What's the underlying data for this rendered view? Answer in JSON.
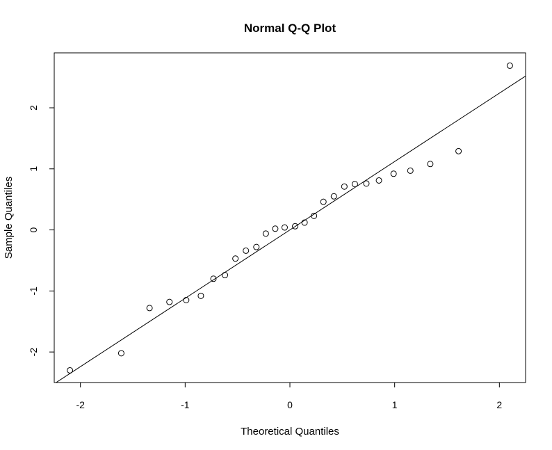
{
  "chart_data": {
    "type": "scatter",
    "title": "Normal Q-Q Plot",
    "xlabel": "Theoretical Quantiles",
    "ylabel": "Sample Quantiles",
    "xlim": [
      -2.25,
      2.25
    ],
    "ylim": [
      -2.5,
      2.9
    ],
    "x_ticks": [
      -2,
      -1,
      0,
      1,
      2
    ],
    "x_tick_labels": [
      "-2",
      "-1",
      "0",
      "1",
      "2"
    ],
    "y_ticks": [
      -2,
      -1,
      0,
      1,
      2
    ],
    "y_tick_labels": [
      "-2",
      "-1",
      "0",
      "1",
      "2"
    ],
    "grid": false,
    "legend": "none",
    "points": {
      "x": [
        -2.1,
        -1.61,
        -1.34,
        -1.15,
        -0.99,
        -0.85,
        -0.73,
        -0.62,
        -0.52,
        -0.42,
        -0.32,
        -0.23,
        -0.14,
        -0.05,
        0.05,
        0.14,
        0.23,
        0.32,
        0.42,
        0.52,
        0.62,
        0.73,
        0.85,
        0.99,
        1.15,
        1.34,
        1.61,
        2.1
      ],
      "y": [
        -2.3,
        -2.02,
        -1.28,
        -1.18,
        -1.15,
        -1.08,
        -0.8,
        -0.74,
        -0.47,
        -0.34,
        -0.28,
        -0.06,
        0.02,
        0.04,
        0.06,
        0.12,
        0.23,
        0.46,
        0.55,
        0.71,
        0.75,
        0.76,
        0.81,
        0.92,
        0.97,
        1.08,
        1.29,
        2.69
      ]
    },
    "reference_line": {
      "intercept": 0.0,
      "slope": 1.12
    }
  }
}
